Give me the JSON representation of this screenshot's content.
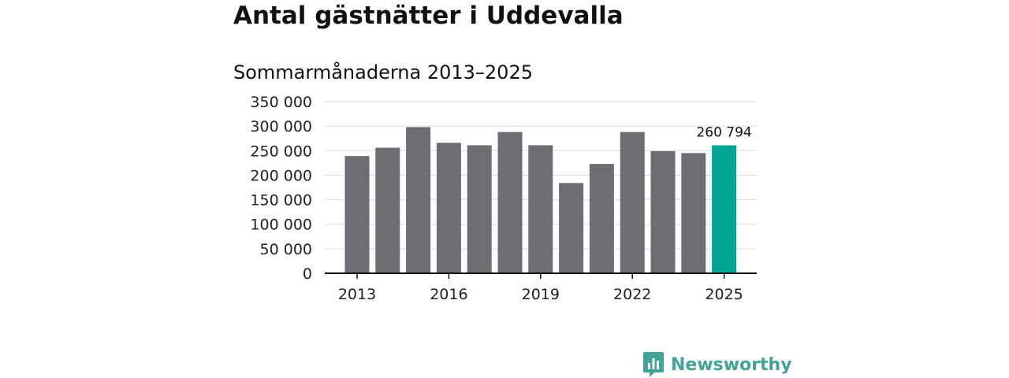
{
  "chart_data": {
    "type": "bar",
    "title": "Antal gästnätter i Uddevalla",
    "subtitle": "Sommarmånaderna 2013–2025",
    "categories": [
      2013,
      2014,
      2015,
      2016,
      2017,
      2018,
      2019,
      2020,
      2021,
      2022,
      2023,
      2024,
      2025
    ],
    "values": [
      239000,
      256000,
      298000,
      266000,
      261000,
      288000,
      261000,
      184000,
      223000,
      288000,
      249000,
      245000,
      260794
    ],
    "ylim": [
      0,
      350000
    ],
    "yticks": [
      0,
      50000,
      100000,
      150000,
      200000,
      250000,
      300000,
      350000
    ],
    "ytick_labels": [
      "0",
      "50 000",
      "100 000",
      "150 000",
      "200 000",
      "250 000",
      "300 000",
      "350 000"
    ],
    "xticks": [
      2013,
      2016,
      2019,
      2022,
      2025
    ],
    "xtick_labels": [
      "2013",
      "2016",
      "2019",
      "2022",
      "2025"
    ],
    "highlight_index": 12,
    "highlight_label": "260 794",
    "grid": true,
    "colors": {
      "bar": "#6e6d73",
      "highlight": "#00a596",
      "grid": "#d9d9d9",
      "axis": "#111111"
    }
  },
  "branding": {
    "logo_text": "Newsworthy",
    "logo_icon": "bar-chart-speech-bubble-icon",
    "logo_color": "#43a39a"
  }
}
